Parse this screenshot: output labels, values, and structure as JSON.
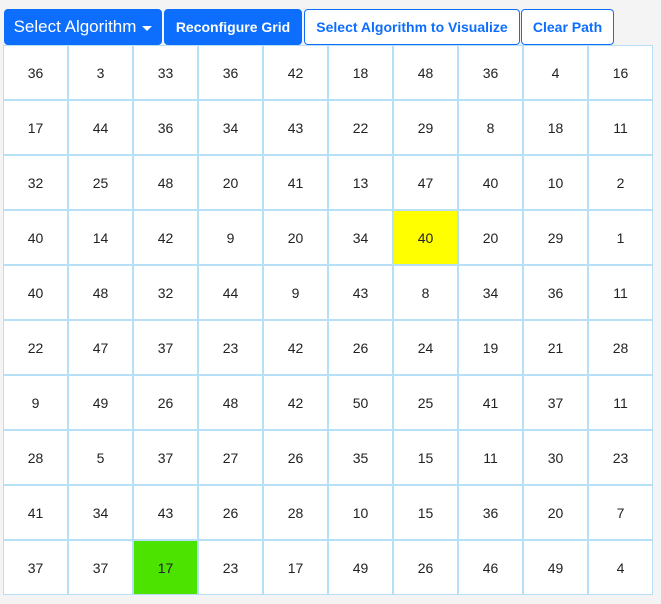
{
  "toolbar": {
    "select_algorithm": "Select Algorithm",
    "reconfigure_grid": "Reconfigure Grid",
    "visualize": "Select Algorithm to Visualize",
    "clear_path": "Clear Path"
  },
  "grid": {
    "rows": [
      [
        36,
        3,
        33,
        36,
        42,
        18,
        48,
        36,
        4,
        16
      ],
      [
        17,
        44,
        36,
        34,
        43,
        22,
        29,
        8,
        18,
        11
      ],
      [
        32,
        25,
        48,
        20,
        41,
        13,
        47,
        40,
        10,
        2
      ],
      [
        40,
        14,
        42,
        9,
        20,
        34,
        40,
        20,
        29,
        1
      ],
      [
        40,
        48,
        32,
        44,
        9,
        43,
        8,
        34,
        36,
        11
      ],
      [
        22,
        47,
        37,
        23,
        42,
        26,
        24,
        19,
        21,
        28
      ],
      [
        9,
        49,
        26,
        48,
        42,
        50,
        25,
        41,
        37,
        11
      ],
      [
        28,
        5,
        37,
        27,
        26,
        35,
        15,
        11,
        30,
        23
      ],
      [
        41,
        34,
        43,
        26,
        28,
        10,
        15,
        36,
        20,
        7
      ],
      [
        37,
        37,
        17,
        23,
        17,
        49,
        26,
        46,
        49,
        4
      ]
    ],
    "highlighted": [
      {
        "row": 3,
        "col": 6,
        "color": "#ffff00",
        "role": "yellow"
      },
      {
        "row": 9,
        "col": 2,
        "color": "#4ce300",
        "role": "green"
      }
    ]
  }
}
